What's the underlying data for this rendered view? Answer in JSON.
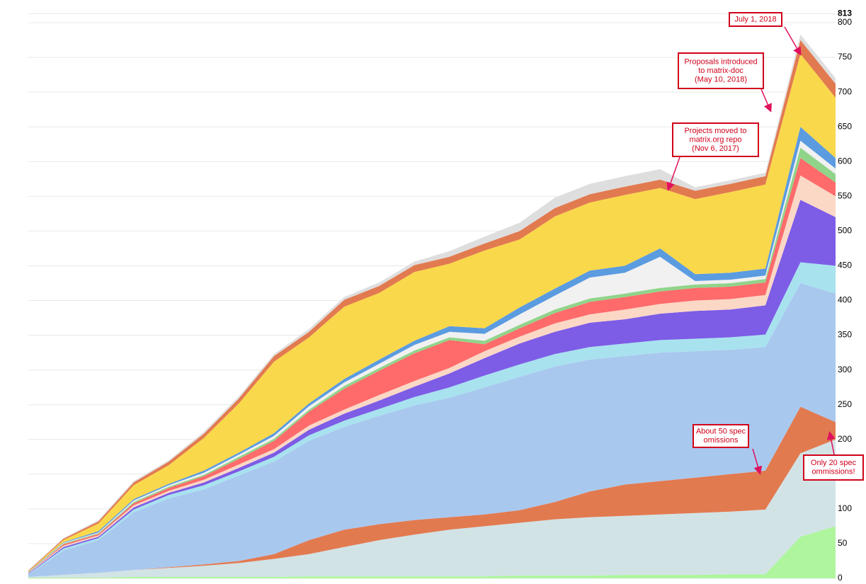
{
  "chart_data": {
    "type": "stacked-area",
    "ylim": [
      0,
      813
    ],
    "yticks": [
      0,
      50,
      100,
      150,
      200,
      250,
      300,
      350,
      400,
      450,
      500,
      550,
      600,
      650,
      700,
      750,
      800,
      813
    ],
    "grid": true,
    "series": [
      {
        "color": "#aef59e",
        "values": [
          1,
          1,
          1,
          2,
          2,
          2,
          2,
          2,
          3,
          3,
          3,
          3,
          3,
          3,
          4,
          4,
          4,
          5,
          5,
          5,
          6,
          6,
          60,
          75
        ]
      },
      {
        "color": "#d2e3e6",
        "values": [
          1,
          4,
          7,
          10,
          13,
          16,
          20,
          26,
          32,
          42,
          52,
          60,
          67,
          72,
          76,
          81,
          84,
          85,
          87,
          89,
          90,
          93,
          120,
          125
        ]
      },
      {
        "color": "#e27a50",
        "values": [
          0,
          0,
          0,
          0,
          1,
          2,
          3,
          7,
          20,
          25,
          23,
          21,
          18,
          17,
          18,
          25,
          37,
          45,
          48,
          51,
          54,
          56,
          67,
          25
        ]
      },
      {
        "color": "#a9c8ee",
        "values": [
          3,
          35,
          47,
          83,
          99,
          108,
          123,
          133,
          143,
          148,
          156,
          165,
          172,
          183,
          192,
          195,
          190,
          185,
          185,
          182,
          179,
          178,
          178,
          185
        ]
      },
      {
        "color": "#a8e2ef",
        "values": [
          1,
          3,
          3,
          4,
          5,
          6,
          6,
          7,
          8,
          9,
          10,
          12,
          15,
          17,
          18,
          18,
          18,
          18,
          18,
          18,
          18,
          18,
          30,
          40
        ]
      },
      {
        "color": "#7d5ce6",
        "values": [
          1,
          2,
          2,
          3,
          3,
          4,
          5,
          6,
          8,
          10,
          12,
          15,
          20,
          25,
          30,
          32,
          35,
          35,
          38,
          40,
          40,
          42,
          90,
          70
        ]
      },
      {
        "color": "#fbd7c6",
        "values": [
          1,
          2,
          2,
          3,
          3,
          4,
          5,
          5,
          6,
          6,
          8,
          8,
          8,
          10,
          10,
          12,
          12,
          14,
          14,
          15,
          15,
          15,
          35,
          30
        ]
      },
      {
        "color": "#ff6b6b",
        "values": [
          0,
          2,
          2,
          3,
          4,
          5,
          8,
          12,
          20,
          30,
          35,
          40,
          40,
          10,
          12,
          15,
          18,
          18,
          18,
          18,
          18,
          18,
          25,
          20
        ]
      },
      {
        "color": "#90d48a",
        "values": [
          0,
          1,
          1,
          2,
          2,
          2,
          3,
          3,
          3,
          4,
          4,
          4,
          4,
          5,
          5,
          5,
          5,
          5,
          5,
          5,
          5,
          5,
          15,
          12
        ]
      },
      {
        "color": "#f1f1f1",
        "values": [
          0,
          1,
          1,
          2,
          2,
          3,
          3,
          4,
          5,
          5,
          6,
          8,
          8,
          10,
          15,
          20,
          30,
          30,
          45,
          5,
          5,
          5,
          10,
          8
        ]
      },
      {
        "color": "#5b9be0",
        "values": [
          1,
          1,
          2,
          2,
          2,
          3,
          3,
          4,
          4,
          5,
          6,
          6,
          8,
          8,
          10,
          10,
          10,
          10,
          12,
          10,
          10,
          10,
          20,
          15
        ]
      },
      {
        "color": "#fad84b",
        "values": [
          1,
          3,
          11,
          20,
          27,
          47,
          71,
          103,
          95,
          104,
          96,
          99,
          90,
          112,
          98,
          104,
          98,
          102,
          87,
          108,
          116,
          121,
          105,
          87
        ]
      },
      {
        "color": "#e27a50",
        "values": [
          1,
          2,
          3,
          4,
          5,
          6,
          7,
          8,
          8,
          10,
          10,
          10,
          10,
          10,
          12,
          12,
          12,
          12,
          12,
          12,
          12,
          12,
          20,
          20
        ]
      },
      {
        "color": "#dedede",
        "values": [
          1,
          1,
          2,
          2,
          2,
          3,
          3,
          3,
          4,
          4,
          5,
          5,
          8,
          10,
          12,
          15,
          15,
          15,
          15,
          5,
          5,
          5,
          8,
          8
        ]
      }
    ],
    "annotations": [
      {
        "lines": [
          "July 1, 2018"
        ]
      },
      {
        "lines": [
          "Proposals introduced",
          "to matrix-doc",
          "(May 10, 2018)"
        ]
      },
      {
        "lines": [
          "Projects moved to",
          "matrix.org repo",
          "(Nov 6, 2017)"
        ]
      },
      {
        "lines": [
          "About 50 spec",
          "omissions"
        ]
      },
      {
        "lines": [
          "Only 20 spec",
          "ommissions!"
        ]
      }
    ]
  }
}
